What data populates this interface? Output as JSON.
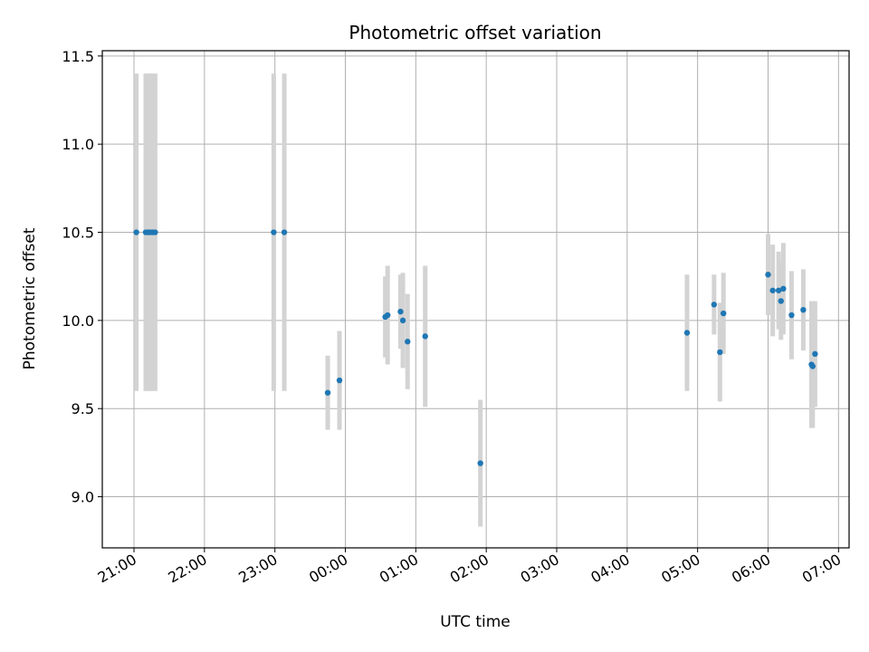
{
  "chart_data": {
    "type": "scatter",
    "title": "Photometric offset variation",
    "xlabel": "UTC time",
    "ylabel": "Photometric offset",
    "x_tick_labels": [
      "21:00",
      "22:00",
      "23:00",
      "00:00",
      "01:00",
      "02:00",
      "03:00",
      "04:00",
      "05:00",
      "06:00",
      "07:00"
    ],
    "x_tick_hours": [
      21,
      22,
      23,
      24,
      25,
      26,
      27,
      28,
      29,
      30,
      31
    ],
    "xlim_hours": [
      20.55,
      31.15
    ],
    "y_tick_labels": [
      "9.0",
      "9.5",
      "10.0",
      "10.5",
      "11.0",
      "11.5"
    ],
    "y_tick_values": [
      9.0,
      9.5,
      10.0,
      10.5,
      11.0,
      11.5
    ],
    "ylim": [
      8.71,
      11.53
    ],
    "grid": true,
    "colors": {
      "point": "#1f77b4",
      "errorbar": "#d3d3d3",
      "grid": "#b0b0b0"
    },
    "points": [
      {
        "time": "21:02",
        "y": 10.5,
        "err": 0.9
      },
      {
        "time": "21:10",
        "y": 10.5,
        "err": 0.9
      },
      {
        "time": "21:12",
        "y": 10.5,
        "err": 0.9
      },
      {
        "time": "21:14",
        "y": 10.5,
        "err": 0.9
      },
      {
        "time": "21:16",
        "y": 10.5,
        "err": 0.9
      },
      {
        "time": "21:18",
        "y": 10.5,
        "err": 0.9
      },
      {
        "time": "22:59",
        "y": 10.5,
        "err": 0.9
      },
      {
        "time": "23:08",
        "y": 10.5,
        "err": 0.9
      },
      {
        "time": "23:45",
        "y": 9.59,
        "err": 0.21
      },
      {
        "time": "23:55",
        "y": 9.66,
        "err": 0.28
      },
      {
        "time": "00:34",
        "y": 10.02,
        "err": 0.23
      },
      {
        "time": "00:36",
        "y": 10.03,
        "err": 0.28
      },
      {
        "time": "00:47",
        "y": 10.05,
        "err": 0.21
      },
      {
        "time": "00:49",
        "y": 10.0,
        "err": 0.27
      },
      {
        "time": "00:53",
        "y": 9.88,
        "err": 0.27
      },
      {
        "time": "01:08",
        "y": 9.91,
        "err": 0.4
      },
      {
        "time": "01:55",
        "y": 9.19,
        "err": 0.36
      },
      {
        "time": "04:51",
        "y": 9.93,
        "err": 0.33
      },
      {
        "time": "05:14",
        "y": 10.09,
        "err": 0.17
      },
      {
        "time": "05:19",
        "y": 9.82,
        "err": 0.28
      },
      {
        "time": "05:22",
        "y": 10.04,
        "err": 0.23
      },
      {
        "time": "06:00",
        "y": 10.26,
        "err": 0.23
      },
      {
        "time": "06:04",
        "y": 10.17,
        "err": 0.26
      },
      {
        "time": "06:09",
        "y": 10.17,
        "err": 0.22
      },
      {
        "time": "06:11",
        "y": 10.11,
        "err": 0.22
      },
      {
        "time": "06:13",
        "y": 10.18,
        "err": 0.26
      },
      {
        "time": "06:20",
        "y": 10.03,
        "err": 0.25
      },
      {
        "time": "06:30",
        "y": 10.06,
        "err": 0.23
      },
      {
        "time": "06:37",
        "y": 9.75,
        "err": 0.36
      },
      {
        "time": "06:38",
        "y": 9.74,
        "err": 0.35
      },
      {
        "time": "06:40",
        "y": 9.81,
        "err": 0.3
      }
    ]
  }
}
